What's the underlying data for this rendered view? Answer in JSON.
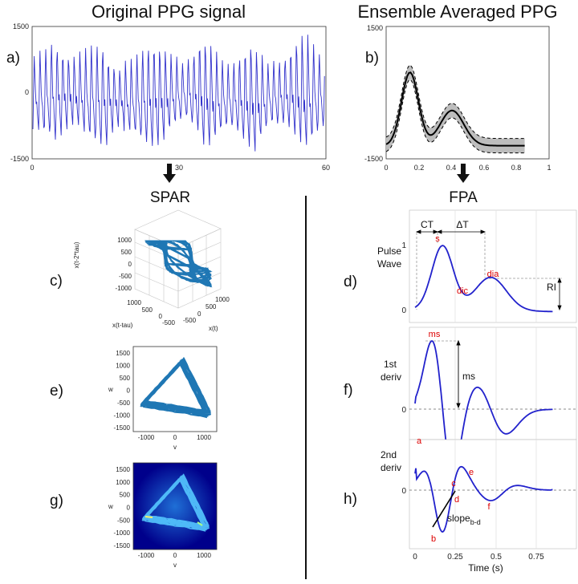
{
  "titles": {
    "left": "Original PPG signal",
    "right": "Ensemble Averaged PPG",
    "spar": "SPAR",
    "fpa": "FPA"
  },
  "panel_labels": [
    "a)",
    "b)",
    "c)",
    "d)",
    "e)",
    "f)",
    "g)",
    "h)"
  ],
  "panel_a": {
    "yticks": [
      "1500",
      "0",
      "-1500"
    ],
    "xticks": [
      "0",
      "30",
      "60"
    ],
    "line_color": "#3333cc"
  },
  "panel_b": {
    "yticks": [
      "1500",
      "-1500"
    ],
    "xticks": [
      "0",
      "0.2",
      "0.4",
      "0.6",
      "0.8",
      "1"
    ]
  },
  "panel_c": {
    "zlabel": "x(t-2*tau)",
    "ylabel": "x(t-tau)",
    "xlabel": "x(t)",
    "zticks": [
      "1000",
      "500",
      "0",
      "-500",
      "-1000"
    ],
    "yticks": [
      "1000",
      "500",
      "0",
      "-500"
    ],
    "xticks": [
      "-500",
      "0",
      "500",
      "1000"
    ]
  },
  "panel_e": {
    "xlabel": "v",
    "ylabel": "w",
    "yticks": [
      "1500",
      "1000",
      "500",
      "0",
      "-500",
      "-1000",
      "-1500"
    ],
    "xticks": [
      "-1000",
      "0",
      "1000"
    ]
  },
  "panel_g": {
    "xlabel": "v",
    "ylabel": "w",
    "yticks": [
      "1500",
      "1000",
      "500",
      "0",
      "-500",
      "-1000",
      "-1500"
    ],
    "xticks": [
      "-1000",
      "0",
      "1000"
    ]
  },
  "panel_d": {
    "ylabel_line1": "Pulse",
    "ylabel_line2": "Wave",
    "yticks": [
      "1",
      "0"
    ],
    "CT": "CT",
    "dT": "ΔT",
    "RI": "RI",
    "s": "s",
    "dic": "dic",
    "dia": "dia"
  },
  "panel_f": {
    "ylabel_line1": "1st",
    "ylabel_line2": "deriv",
    "ytick": "0",
    "ms_red": "ms",
    "ms_black": "ms"
  },
  "panel_h": {
    "ylabel_line1": "2nd",
    "ylabel_line2": "deriv",
    "ytick": "0",
    "a": "a",
    "b": "b",
    "c": "c",
    "d": "d",
    "e": "e",
    "f": "f",
    "slope": "slope",
    "slope_sub": "b-d",
    "xticks": [
      "0",
      "0.25",
      "0.5",
      "0.75"
    ],
    "xlabel": "Time (s)"
  },
  "colors": {
    "signal": "#2222cc",
    "spar": "#1f77b4",
    "marker": "#dd0000",
    "heatbg": "#00008b"
  }
}
